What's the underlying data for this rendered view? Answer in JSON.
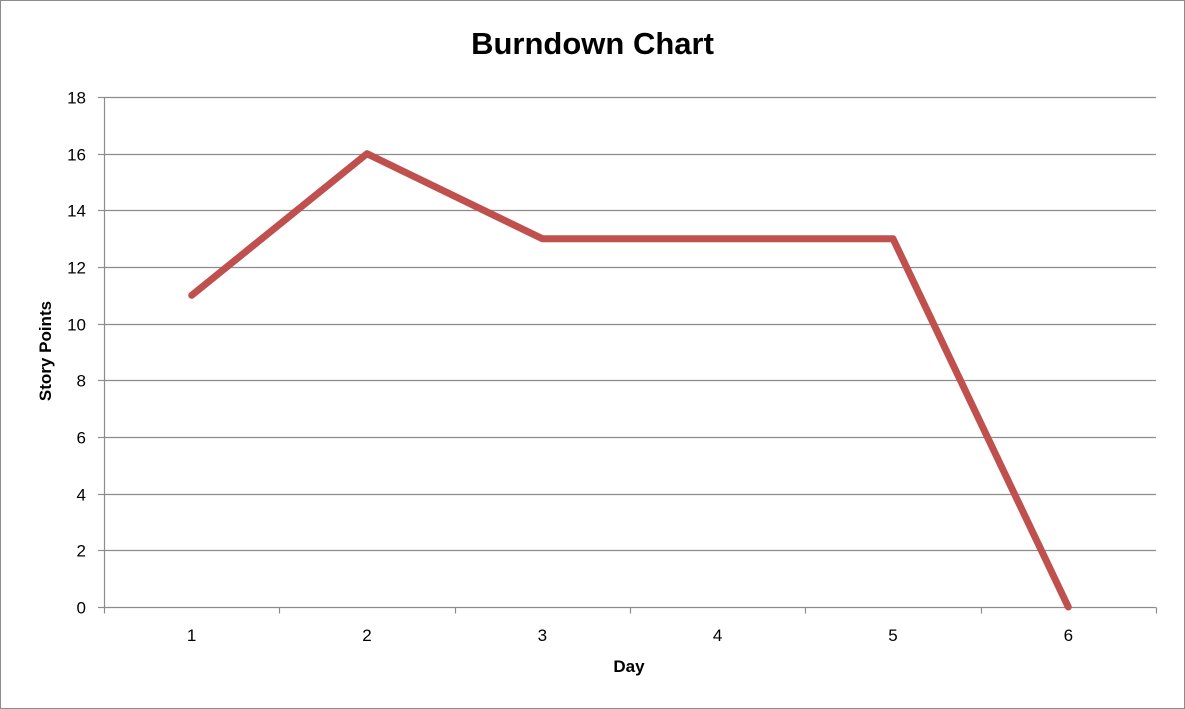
{
  "chart_data": {
    "type": "line",
    "title": "Burndown Chart",
    "xlabel": "Day",
    "ylabel": "Story Points",
    "x": [
      1,
      2,
      3,
      4,
      5,
      6
    ],
    "series": [
      {
        "values": [
          11,
          16,
          13,
          13,
          13,
          0
        ],
        "color": "#c0504d"
      }
    ],
    "ylim": [
      0,
      18
    ],
    "yticks": [
      0,
      2,
      4,
      6,
      8,
      10,
      12,
      14,
      16,
      18
    ],
    "grid": true,
    "legend": "none",
    "gridline_color": "#8c8c8c"
  }
}
